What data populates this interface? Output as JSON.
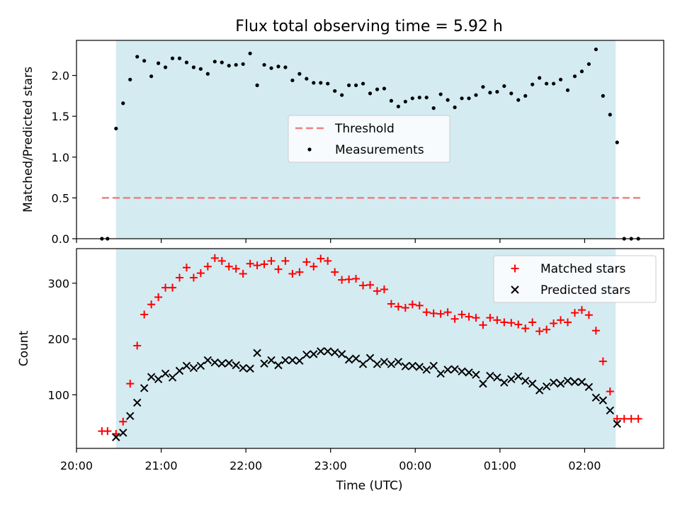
{
  "figure": {
    "title": "Flux total observing time = 5.92 h"
  },
  "colors": {
    "observing_window": "#d4ebf2",
    "threshold": "#f08080",
    "measurements": "#000000",
    "matched": "#ff0000",
    "predicted": "#000000"
  },
  "chart_data": [
    {
      "type": "scatter",
      "panel": "top",
      "ylabel": "Matched/Predicted stars",
      "xlim": [
        "20:00",
        "02:56"
      ],
      "ylim": [
        0,
        2.43
      ],
      "yticks": [
        0.0,
        0.5,
        1.0,
        1.5,
        2.0
      ],
      "xticks": [
        "20:00",
        "21:00",
        "22:00",
        "23:00",
        "00:00",
        "01:00",
        "02:00"
      ],
      "grid": false,
      "legend_placement": "center",
      "observing_window": [
        "20:28",
        "02:22"
      ],
      "series": [
        {
          "name": "Threshold",
          "style": "dashed-line",
          "x": [
            "20:18",
            "02:40"
          ],
          "y": [
            0.5,
            0.5
          ]
        },
        {
          "name": "Measurements",
          "style": "dot",
          "points": [
            [
              "20:18",
              0.0
            ],
            [
              "20:22",
              0.0
            ],
            [
              "20:28",
              1.35
            ],
            [
              "20:33",
              1.66
            ],
            [
              "20:38",
              1.95
            ],
            [
              "20:43",
              2.23
            ],
            [
              "20:48",
              2.18
            ],
            [
              "20:53",
              1.99
            ],
            [
              "20:58",
              2.15
            ],
            [
              "21:03",
              2.1
            ],
            [
              "21:08",
              2.21
            ],
            [
              "21:13",
              2.21
            ],
            [
              "21:18",
              2.16
            ],
            [
              "21:23",
              2.1
            ],
            [
              "21:28",
              2.08
            ],
            [
              "21:33",
              2.02
            ],
            [
              "21:38",
              2.17
            ],
            [
              "21:43",
              2.16
            ],
            [
              "21:48",
              2.12
            ],
            [
              "21:53",
              2.13
            ],
            [
              "21:58",
              2.14
            ],
            [
              "22:03",
              2.27
            ],
            [
              "22:08",
              1.88
            ],
            [
              "22:13",
              2.13
            ],
            [
              "22:18",
              2.09
            ],
            [
              "22:23",
              2.11
            ],
            [
              "22:28",
              2.1
            ],
            [
              "22:33",
              1.94
            ],
            [
              "22:38",
              2.02
            ],
            [
              "22:43",
              1.96
            ],
            [
              "22:48",
              1.91
            ],
            [
              "22:53",
              1.91
            ],
            [
              "22:58",
              1.9
            ],
            [
              "23:03",
              1.81
            ],
            [
              "23:08",
              1.76
            ],
            [
              "23:13",
              1.88
            ],
            [
              "23:18",
              1.88
            ],
            [
              "23:23",
              1.9
            ],
            [
              "23:28",
              1.78
            ],
            [
              "23:33",
              1.83
            ],
            [
              "23:38",
              1.84
            ],
            [
              "23:43",
              1.69
            ],
            [
              "23:48",
              1.62
            ],
            [
              "23:53",
              1.68
            ],
            [
              "23:58",
              1.72
            ],
            [
              "00:03",
              1.73
            ],
            [
              "00:08",
              1.73
            ],
            [
              "00:13",
              1.6
            ],
            [
              "00:18",
              1.77
            ],
            [
              "00:23",
              1.7
            ],
            [
              "00:28",
              1.61
            ],
            [
              "00:33",
              1.72
            ],
            [
              "00:38",
              1.72
            ],
            [
              "00:43",
              1.76
            ],
            [
              "00:48",
              1.86
            ],
            [
              "00:53",
              1.79
            ],
            [
              "00:58",
              1.8
            ],
            [
              "01:03",
              1.87
            ],
            [
              "01:08",
              1.78
            ],
            [
              "01:13",
              1.7
            ],
            [
              "01:18",
              1.75
            ],
            [
              "01:23",
              1.89
            ],
            [
              "01:28",
              1.97
            ],
            [
              "01:33",
              1.9
            ],
            [
              "01:38",
              1.9
            ],
            [
              "01:43",
              1.95
            ],
            [
              "01:48",
              1.82
            ],
            [
              "01:53",
              1.99
            ],
            [
              "01:58",
              2.05
            ],
            [
              "02:03",
              2.14
            ],
            [
              "02:08",
              2.32
            ],
            [
              "02:13",
              1.75
            ],
            [
              "02:18",
              1.52
            ],
            [
              "02:23",
              1.18
            ],
            [
              "02:28",
              0.0
            ],
            [
              "02:33",
              0.0
            ],
            [
              "02:38",
              0.0
            ]
          ]
        }
      ]
    },
    {
      "type": "scatter",
      "panel": "bottom",
      "xlabel": "Time (UTC)",
      "ylabel": "Count",
      "xlim": [
        "20:00",
        "02:56"
      ],
      "ylim": [
        4,
        362
      ],
      "yticks": [
        100,
        200,
        300
      ],
      "xticks": [
        "20:00",
        "21:00",
        "22:00",
        "23:00",
        "00:00",
        "01:00",
        "02:00"
      ],
      "grid": false,
      "legend_placement": "upper right",
      "observing_window": [
        "20:28",
        "02:22"
      ],
      "series": [
        {
          "name": "Matched stars",
          "marker": "plus",
          "points": [
            [
              "20:18",
              35
            ],
            [
              "20:22",
              35
            ],
            [
              "20:28",
              30
            ],
            [
              "20:33",
              52
            ],
            [
              "20:38",
              120
            ],
            [
              "20:43",
              188
            ],
            [
              "20:48",
              244
            ],
            [
              "20:53",
              262
            ],
            [
              "20:58",
              275
            ],
            [
              "21:03",
              292
            ],
            [
              "21:08",
              292
            ],
            [
              "21:13",
              310
            ],
            [
              "21:18",
              328
            ],
            [
              "21:23",
              310
            ],
            [
              "21:28",
              318
            ],
            [
              "21:33",
              330
            ],
            [
              "21:38",
              345
            ],
            [
              "21:43",
              340
            ],
            [
              "21:48",
              330
            ],
            [
              "21:53",
              326
            ],
            [
              "21:58",
              317
            ],
            [
              "22:03",
              335
            ],
            [
              "22:08",
              332
            ],
            [
              "22:13",
              334
            ],
            [
              "22:18",
              340
            ],
            [
              "22:23",
              325
            ],
            [
              "22:28",
              340
            ],
            [
              "22:33",
              317
            ],
            [
              "22:38",
              320
            ],
            [
              "22:43",
              338
            ],
            [
              "22:48",
              330
            ],
            [
              "22:53",
              344
            ],
            [
              "22:58",
              340
            ],
            [
              "23:03",
              320
            ],
            [
              "23:08",
              306
            ],
            [
              "23:13",
              307
            ],
            [
              "23:18",
              308
            ],
            [
              "23:23",
              296
            ],
            [
              "23:28",
              297
            ],
            [
              "23:33",
              286
            ],
            [
              "23:38",
              289
            ],
            [
              "23:43",
              263
            ],
            [
              "23:48",
              258
            ],
            [
              "23:53",
              256
            ],
            [
              "23:58",
              262
            ],
            [
              "00:03",
              260
            ],
            [
              "00:08",
              248
            ],
            [
              "00:13",
              246
            ],
            [
              "00:18",
              245
            ],
            [
              "00:23",
              248
            ],
            [
              "00:28",
              236
            ],
            [
              "00:33",
              244
            ],
            [
              "00:38",
              240
            ],
            [
              "00:43",
              238
            ],
            [
              "00:48",
              225
            ],
            [
              "00:53",
              238
            ],
            [
              "00:58",
              234
            ],
            [
              "01:03",
              230
            ],
            [
              "01:08",
              229
            ],
            [
              "01:13",
              226
            ],
            [
              "01:18",
              219
            ],
            [
              "01:23",
              230
            ],
            [
              "01:28",
              214
            ],
            [
              "01:33",
              217
            ],
            [
              "01:38",
              228
            ],
            [
              "01:43",
              234
            ],
            [
              "01:48",
              230
            ],
            [
              "01:53",
              247
            ],
            [
              "01:58",
              252
            ],
            [
              "02:03",
              243
            ],
            [
              "02:08",
              215
            ],
            [
              "02:13",
              160
            ],
            [
              "02:18",
              106
            ],
            [
              "02:23",
              57
            ],
            [
              "02:28",
              57
            ],
            [
              "02:33",
              57
            ],
            [
              "02:38",
              57
            ]
          ]
        },
        {
          "name": "Predicted stars",
          "marker": "cross",
          "points": [
            [
              "20:28",
              24
            ],
            [
              "20:33",
              32
            ],
            [
              "20:38",
              62
            ],
            [
              "20:43",
              86
            ],
            [
              "20:48",
              112
            ],
            [
              "20:53",
              132
            ],
            [
              "20:58",
              128
            ],
            [
              "21:03",
              138
            ],
            [
              "21:08",
              131
            ],
            [
              "21:13",
              143
            ],
            [
              "21:18",
              152
            ],
            [
              "21:23",
              148
            ],
            [
              "21:28",
              152
            ],
            [
              "21:33",
              162
            ],
            [
              "21:38",
              158
            ],
            [
              "21:43",
              156
            ],
            [
              "21:48",
              157
            ],
            [
              "21:53",
              153
            ],
            [
              "21:58",
              148
            ],
            [
              "22:03",
              147
            ],
            [
              "22:08",
              175
            ],
            [
              "22:13",
              156
            ],
            [
              "22:18",
              162
            ],
            [
              "22:23",
              153
            ],
            [
              "22:28",
              162
            ],
            [
              "22:33",
              162
            ],
            [
              "22:38",
              161
            ],
            [
              "22:43",
              172
            ],
            [
              "22:48",
              173
            ],
            [
              "22:53",
              178
            ],
            [
              "22:58",
              178
            ],
            [
              "23:03",
              176
            ],
            [
              "23:08",
              173
            ],
            [
              "23:13",
              163
            ],
            [
              "23:18",
              165
            ],
            [
              "23:23",
              155
            ],
            [
              "23:28",
              166
            ],
            [
              "23:33",
              155
            ],
            [
              "23:38",
              159
            ],
            [
              "23:43",
              155
            ],
            [
              "23:48",
              159
            ],
            [
              "23:53",
              151
            ],
            [
              "23:58",
              152
            ],
            [
              "00:03",
              150
            ],
            [
              "00:08",
              145
            ],
            [
              "00:13",
              152
            ],
            [
              "00:18",
              138
            ],
            [
              "00:23",
              145
            ],
            [
              "00:28",
              146
            ],
            [
              "00:33",
              142
            ],
            [
              "00:38",
              140
            ],
            [
              "00:43",
              136
            ],
            [
              "00:48",
              120
            ],
            [
              "00:53",
              134
            ],
            [
              "00:58",
              131
            ],
            [
              "01:03",
              122
            ],
            [
              "01:08",
              128
            ],
            [
              "01:13",
              133
            ],
            [
              "01:18",
              125
            ],
            [
              "01:23",
              120
            ],
            [
              "01:28",
              108
            ],
            [
              "01:33",
              115
            ],
            [
              "01:38",
              122
            ],
            [
              "01:43",
              120
            ],
            [
              "01:48",
              125
            ],
            [
              "01:53",
              123
            ],
            [
              "01:58",
              123
            ],
            [
              "02:03",
              114
            ],
            [
              "02:08",
              95
            ],
            [
              "02:13",
              90
            ],
            [
              "02:18",
              72
            ],
            [
              "02:23",
              48
            ]
          ]
        }
      ]
    }
  ]
}
